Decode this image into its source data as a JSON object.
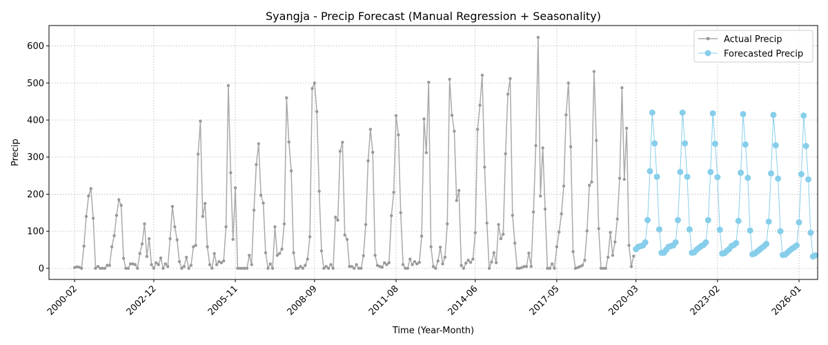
{
  "chart_data": {
    "type": "line",
    "title": "Syangja - Precip Forecast (Manual Regression + Seasonality)",
    "xlabel": "Time (Year-Month)",
    "ylabel": "Precip",
    "x_ticks": [
      "2000-02",
      "2002-12",
      "2005-11",
      "2008-09",
      "2011-08",
      "2014-06",
      "2017-05",
      "2020-03",
      "2023-02",
      "2026-01"
    ],
    "xlim": [
      "1999-03",
      "2026-09"
    ],
    "ylim": [
      -30,
      655
    ],
    "y_ticks": [
      0,
      100,
      200,
      300,
      400,
      500,
      600
    ],
    "grid": true,
    "legend_position": "top-right",
    "series": [
      {
        "name": "Actual Precip",
        "color": "#a9a9a9",
        "start": "2000-02",
        "values": [
          2,
          4,
          3,
          0,
          60,
          140,
          195,
          215,
          135,
          0,
          5,
          0,
          0,
          0,
          8,
          8,
          58,
          88,
          143,
          185,
          170,
          27,
          0,
          0,
          12,
          12,
          10,
          0,
          40,
          66,
          120,
          32,
          80,
          10,
          0,
          15,
          10,
          28,
          0,
          12,
          5,
          80,
          167,
          112,
          77,
          18,
          0,
          5,
          30,
          0,
          8,
          58,
          62,
          308,
          397,
          140,
          175,
          58,
          10,
          0,
          40,
          10,
          18,
          15,
          20,
          112,
          493,
          258,
          78,
          217,
          0,
          0,
          0,
          0,
          0,
          35,
          10,
          157,
          280,
          336,
          197,
          176,
          42,
          0,
          12,
          0,
          112,
          35,
          40,
          52,
          120,
          460,
          341,
          263,
          42,
          0,
          0,
          5,
          0,
          8,
          25,
          85,
          485,
          500,
          423,
          208,
          47,
          0,
          5,
          0,
          10,
          0,
          138,
          130,
          316,
          340,
          90,
          78,
          5,
          5,
          0,
          10,
          0,
          0,
          34,
          118,
          290,
          375,
          313,
          35,
          8,
          5,
          3,
          15,
          10,
          15,
          142,
          205,
          412,
          360,
          150,
          10,
          0,
          0,
          25,
          10,
          18,
          12,
          16,
          87,
          403,
          312,
          502,
          58,
          5,
          0,
          20,
          57,
          12,
          30,
          120,
          510,
          413,
          370,
          183,
          210,
          8,
          0,
          14,
          22,
          16,
          25,
          96,
          375,
          440,
          521,
          273,
          122,
          0,
          17,
          42,
          15,
          118,
          80,
          92,
          309,
          470,
          512,
          143,
          68,
          0,
          0,
          2,
          5,
          5,
          41,
          5,
          152,
          331,
          623,
          195,
          325,
          160,
          0,
          0,
          12,
          0,
          58,
          98,
          147,
          222,
          414,
          500,
          328,
          45,
          0,
          2,
          5,
          8,
          22,
          101,
          224,
          233,
          531,
          345,
          107,
          0,
          0,
          0,
          30,
          97,
          35,
          71,
          133,
          243,
          487,
          240,
          378,
          62,
          5,
          33
        ]
      },
      {
        "name": "Forecasted Precip",
        "color": "#87ceeb",
        "start": "2020-03",
        "values": [
          52,
          58,
          60,
          62,
          70,
          130,
          262,
          420,
          337,
          247,
          105,
          42,
          42,
          50,
          58,
          60,
          62,
          70,
          130,
          260,
          420,
          337,
          247,
          105,
          42,
          43,
          50,
          55,
          60,
          63,
          70,
          130,
          260,
          418,
          336,
          246,
          104,
          40,
          41,
          47,
          52,
          60,
          63,
          68,
          128,
          258,
          416,
          334,
          244,
          102,
          38,
          40,
          45,
          50,
          55,
          60,
          66,
          126,
          256,
          414,
          332,
          242,
          100,
          36,
          37,
          42,
          48,
          53,
          57,
          62,
          124,
          254,
          412,
          330,
          240,
          96,
          32,
          35
        ]
      }
    ]
  }
}
